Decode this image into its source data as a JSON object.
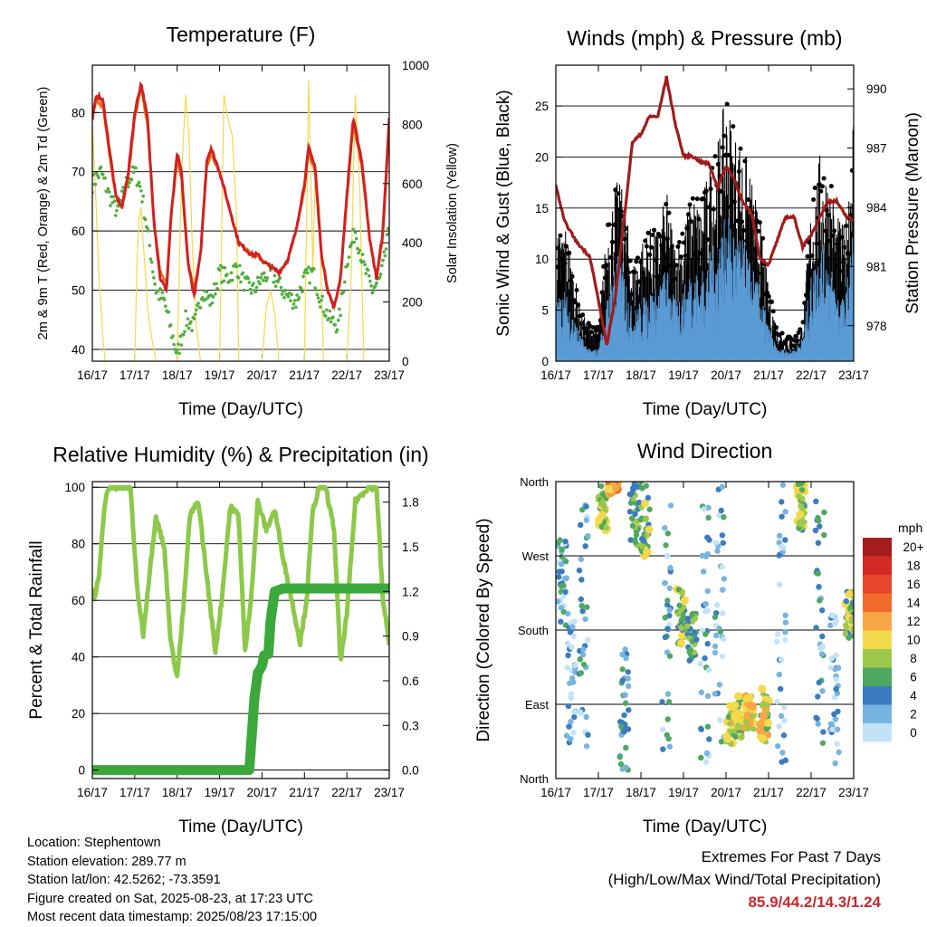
{
  "info": {
    "location": "Location: Stephentown",
    "elevation": "Station elevation: 289.77 m",
    "latlon": "Station lat/lon: 42.5262; -73.3591",
    "created": "Figure created on Sat, 2025-08-23, at 17:23 UTC",
    "recent": "Most recent data timestamp: 2025/08/23 17:15:00"
  },
  "extremes": {
    "title": "Extremes For Past 7 Days",
    "subtitle": "(High/Low/Max Wind/Total Precipitation)",
    "values": "85.9/44.2/14.3/1.24"
  },
  "colors": {
    "temp_9m": "#e8701a",
    "temp_2m": "#d22020",
    "dewpoint": "#4fae3c",
    "solar": "#f5d84a",
    "gust": "#000000",
    "wind": "#5b9bd5",
    "pressure": "#a01c1c",
    "rh": "#8dc84a",
    "precip": "#3ba83b"
  },
  "chart_data": [
    {
      "type": "line",
      "title": "Temperature (F)",
      "xlabel": "Time (Day/UTC)",
      "ylabel": "2m & 9m T (Red, Orange) & 2m Td (Green)",
      "y2label": "Solar Insolation (Yellow)",
      "ylim": [
        38,
        88
      ],
      "y2lim": [
        0,
        1000
      ],
      "yticks": [
        40,
        50,
        60,
        70,
        80
      ],
      "y2ticks": [
        0,
        200,
        400,
        600,
        800,
        1000
      ],
      "xticks": [
        "16/17",
        "17/17",
        "18/17",
        "19/17",
        "20/17",
        "21/17",
        "22/17",
        "23/17"
      ],
      "grid": true,
      "series": [
        {
          "name": "2m T",
          "axis": "left",
          "x": [
            0,
            0.1,
            0.25,
            0.4,
            0.55,
            0.7,
            0.85,
            1.0,
            1.15,
            1.3,
            1.45,
            1.6,
            1.75,
            1.85,
            2.0,
            2.1,
            2.25,
            2.4,
            2.55,
            2.7,
            2.8,
            3.0,
            3.15,
            3.3,
            3.45,
            3.6,
            3.75,
            3.9,
            4.0,
            4.2,
            4.4,
            4.6,
            4.8,
            5.0,
            5.1,
            5.25,
            5.4,
            5.55,
            5.7,
            5.85,
            6.0,
            6.15,
            6.35,
            6.55,
            6.7,
            6.85,
            7.0
          ],
          "y": [
            79,
            83,
            82,
            74,
            66,
            64,
            70,
            80,
            85,
            79,
            62,
            52,
            50,
            62,
            73,
            70,
            55,
            49,
            56,
            72,
            74,
            70,
            66,
            62,
            58,
            57,
            56,
            56,
            55,
            54,
            53,
            55,
            60,
            68,
            74,
            71,
            56,
            50,
            47,
            52,
            66,
            79,
            72,
            58,
            52,
            60,
            79
          ]
        },
        {
          "name": "9m T",
          "axis": "left",
          "x": [
            0,
            0.1,
            0.25,
            0.4,
            0.55,
            0.7,
            0.85,
            1.0,
            1.15,
            1.3,
            1.45,
            1.6,
            1.75,
            1.85,
            2.0,
            2.1,
            2.25,
            2.4,
            2.55,
            2.7,
            2.8,
            3.0,
            3.15,
            3.3,
            3.45,
            3.6,
            3.75,
            3.9,
            4.0,
            4.2,
            4.4,
            4.6,
            4.8,
            5.0,
            5.1,
            5.25,
            5.4,
            5.55,
            5.7,
            5.85,
            6.0,
            6.15,
            6.35,
            6.55,
            6.7,
            6.85,
            7.0
          ],
          "y": [
            79,
            82,
            81,
            73,
            66,
            64,
            69,
            79,
            84,
            78,
            62,
            53,
            51,
            62,
            72,
            69,
            55,
            50,
            56,
            71,
            73,
            70,
            66,
            62,
            58,
            57,
            56,
            56,
            55,
            54,
            53,
            55,
            60,
            67,
            73,
            70,
            56,
            50,
            47,
            52,
            65,
            78,
            71,
            58,
            52,
            59,
            78
          ]
        },
        {
          "name": "2m Td",
          "axis": "left",
          "x": [
            0,
            0.2,
            0.4,
            0.6,
            0.8,
            1.0,
            1.15,
            1.3,
            1.5,
            1.7,
            1.9,
            2.0,
            2.2,
            2.4,
            2.6,
            2.8,
            3.0,
            3.2,
            3.4,
            3.6,
            3.8,
            4.0,
            4.2,
            4.4,
            4.6,
            4.8,
            5.0,
            5.2,
            5.4,
            5.6,
            5.8,
            6.0,
            6.2,
            6.4,
            6.6,
            6.8,
            7.0
          ],
          "y": [
            68,
            70,
            66,
            63,
            68,
            70,
            67,
            60,
            50,
            48,
            42,
            39,
            45,
            44,
            50,
            48,
            53,
            52,
            54,
            51,
            50,
            52,
            53,
            51,
            49,
            48,
            52,
            53,
            48,
            45,
            44,
            55,
            60,
            54,
            50,
            52,
            60
          ]
        },
        {
          "name": "Solar",
          "axis": "right",
          "x": [
            0,
            0.08,
            0.15,
            0.25,
            0.3,
            1.0,
            1.05,
            1.1,
            1.15,
            1.2,
            1.25,
            1.3,
            1.4,
            1.5,
            2.0,
            2.1,
            2.2,
            2.28,
            2.35,
            2.45,
            2.55,
            3.0,
            3.1,
            3.2,
            3.3,
            3.4,
            3.45,
            4.0,
            4.1,
            4.2,
            4.3,
            4.4,
            5.0,
            5.1,
            5.2,
            5.25,
            5.35,
            5.45,
            6.0,
            6.1,
            6.2,
            6.3,
            6.4
          ],
          "y": [
            800,
            560,
            300,
            80,
            0,
            0,
            320,
            480,
            520,
            400,
            300,
            180,
            80,
            0,
            0,
            620,
            900,
            760,
            420,
            120,
            0,
            0,
            900,
            820,
            760,
            500,
            0,
            0,
            180,
            240,
            160,
            0,
            0,
            950,
            300,
            620,
            520,
            0,
            0,
            280,
            900,
            600,
            0
          ]
        }
      ]
    },
    {
      "type": "line",
      "title": "Winds (mph) & Pressure (mb)",
      "xlabel": "Time (Day/UTC)",
      "ylabel": "Sonic Wind & Gust (Blue, Black)",
      "y2label": "Station Pressure (Maroon)",
      "ylim": [
        0,
        29
      ],
      "y2lim": [
        976.2,
        991.2
      ],
      "yticks": [
        0,
        5,
        10,
        15,
        20,
        25
      ],
      "y2ticks": [
        978,
        981,
        984,
        987,
        990
      ],
      "xticks": [
        "16/17",
        "17/17",
        "18/17",
        "19/17",
        "20/17",
        "21/17",
        "22/17",
        "23/17"
      ],
      "grid": true,
      "series": [
        {
          "name": "Pressure",
          "axis": "right",
          "x": [
            0,
            0.2,
            0.5,
            0.8,
            1.0,
            1.2,
            1.4,
            1.6,
            1.8,
            2.0,
            2.2,
            2.4,
            2.6,
            2.8,
            3.0,
            3.2,
            3.4,
            3.6,
            3.8,
            4.0,
            4.2,
            4.4,
            4.6,
            4.8,
            5.0,
            5.2,
            5.4,
            5.6,
            5.8,
            6.0,
            6.2,
            6.4,
            6.6,
            6.8,
            7.0
          ],
          "y": [
            985.1,
            983.3,
            982.2,
            981.5,
            979.3,
            977.0,
            979.5,
            983.3,
            987.3,
            987.7,
            988.6,
            988.6,
            990.6,
            988.3,
            986.6,
            986.6,
            986.3,
            986.2,
            985.0,
            986.1,
            985.4,
            984.2,
            983.7,
            981.4,
            981.1,
            982.3,
            983.5,
            983.5,
            982.0,
            982.6,
            983.5,
            984.3,
            984.3,
            983.6,
            983.3
          ]
        },
        {
          "name": "Gust",
          "axis": "left",
          "x": [
            0,
            0.2,
            0.4,
            0.6,
            0.8,
            1.0,
            1.2,
            1.4,
            1.6,
            1.8,
            2.0,
            2.2,
            2.4,
            2.6,
            2.8,
            3.0,
            3.2,
            3.4,
            3.6,
            3.8,
            4.0,
            4.2,
            4.4,
            4.6,
            4.8,
            5.0,
            5.2,
            5.4,
            5.6,
            5.8,
            6.0,
            6.2,
            6.4,
            6.6,
            6.8,
            7.0
          ],
          "y": [
            10,
            12,
            8,
            4,
            3,
            3,
            11,
            15,
            14,
            8,
            10,
            11,
            11,
            14,
            10,
            11,
            14,
            13,
            16,
            18,
            22,
            19,
            18,
            15,
            12,
            6,
            3,
            2,
            2,
            3,
            13,
            17,
            16,
            12,
            11,
            22
          ]
        },
        {
          "name": "Wind",
          "axis": "left",
          "x": [
            0,
            0.2,
            0.4,
            0.6,
            0.8,
            1.0,
            1.2,
            1.4,
            1.6,
            1.8,
            2.0,
            2.2,
            2.4,
            2.6,
            2.8,
            3.0,
            3.2,
            3.4,
            3.6,
            3.8,
            4.0,
            4.2,
            4.4,
            4.6,
            4.8,
            5.0,
            5.2,
            5.4,
            5.6,
            5.8,
            6.0,
            6.2,
            6.4,
            6.6,
            6.8,
            7.0
          ],
          "y": [
            5,
            6,
            4,
            2,
            1,
            1,
            5,
            9,
            8,
            4,
            5,
            6,
            6,
            8,
            5,
            6,
            8,
            7,
            9,
            10,
            12,
            11,
            10,
            8,
            6,
            3,
            1,
            1,
            1,
            2,
            7,
            10,
            9,
            6,
            5,
            12
          ]
        }
      ]
    },
    {
      "type": "line",
      "title": "Relative Humidity (%) & Precipitation (in)",
      "xlabel": "Time (Day/UTC)",
      "ylabel": "Percent & Total Rainfall",
      "ylim": [
        -3,
        102
      ],
      "y2lim": [
        -0.057,
        1.938
      ],
      "yticks": [
        0,
        20,
        40,
        60,
        80,
        100
      ],
      "y2ticks": [
        "0.0",
        "0.3",
        "0.6",
        "0.9",
        "1.2",
        "1.5",
        "1.8"
      ],
      "xticks": [
        "16/17",
        "17/17",
        "18/17",
        "19/17",
        "20/17",
        "21/17",
        "22/17",
        "23/17"
      ],
      "grid": true,
      "series": [
        {
          "name": "RH",
          "axis": "left",
          "x": [
            0,
            0.05,
            0.15,
            0.3,
            0.4,
            0.6,
            0.9,
            1.05,
            1.2,
            1.35,
            1.5,
            1.7,
            1.85,
            2.0,
            2.15,
            2.3,
            2.5,
            2.7,
            2.9,
            3.05,
            3.25,
            3.45,
            3.6,
            3.75,
            3.9,
            4.1,
            4.3,
            4.5,
            4.7,
            4.9,
            5.05,
            5.2,
            5.35,
            5.5,
            5.7,
            5.85,
            6.0,
            6.2,
            6.5,
            6.7,
            6.85,
            7.0
          ],
          "y": [
            65,
            61,
            68,
            95,
            100,
            100,
            100,
            65,
            48,
            70,
            90,
            78,
            45,
            33,
            58,
            90,
            95,
            68,
            42,
            60,
            93,
            90,
            42,
            62,
            95,
            85,
            92,
            75,
            60,
            45,
            60,
            92,
            100,
            100,
            85,
            38,
            55,
            95,
            100,
            100,
            60,
            45
          ]
        },
        {
          "name": "Precipitation",
          "axis": "right",
          "x": [
            0,
            1,
            2,
            3,
            3.7,
            3.75,
            3.82,
            3.9,
            4.0,
            4.05,
            4.15,
            4.2,
            4.3,
            4.5,
            5,
            6,
            7
          ],
          "y": [
            0,
            0,
            0,
            0,
            0,
            0.2,
            0.48,
            0.65,
            0.7,
            0.77,
            0.78,
            1.0,
            1.2,
            1.22,
            1.22,
            1.22,
            1.22
          ]
        }
      ]
    },
    {
      "type": "scatter",
      "title": "Wind Direction",
      "xlabel": "Time (Day/UTC)",
      "ylabel": "Direction (Colored By Speed)",
      "ylim": [
        0,
        360
      ],
      "yticks": [
        "North",
        "East",
        "South",
        "West",
        "North"
      ],
      "xticks": [
        "16/17",
        "17/17",
        "18/17",
        "19/17",
        "20/17",
        "21/17",
        "22/17",
        "23/17"
      ],
      "grid": true,
      "legend": {
        "title": "mph",
        "labels": [
          "20+",
          "18",
          "16",
          "14",
          "12",
          "10",
          "8",
          "6",
          "4",
          "2",
          "0"
        ],
        "colors": [
          "#a51c1c",
          "#d42a26",
          "#e8462a",
          "#f26a2c",
          "#f8a746",
          "#f3d94c",
          "#9cc84c",
          "#4fa862",
          "#3a7cbf",
          "#78b4e0",
          "#c2e3f6"
        ]
      },
      "clusters": [
        {
          "x": 0.15,
          "dir_range": [
            180,
            300
          ],
          "speed": 3
        },
        {
          "x": 0.35,
          "dir_range": [
            40,
            200
          ],
          "speed": 2
        },
        {
          "x": 0.65,
          "dir_range": [
            20,
            350
          ],
          "speed": 3
        },
        {
          "x": 1.1,
          "dir_range": [
            300,
            360
          ],
          "speed": 8
        },
        {
          "x": 1.35,
          "dir_range": [
            345,
            360
          ],
          "speed": 12
        },
        {
          "x": 1.6,
          "dir_range": [
            10,
            160
          ],
          "speed": 4
        },
        {
          "x": 1.85,
          "dir_range": [
            280,
            360
          ],
          "speed": 6
        },
        {
          "x": 2.1,
          "dir_range": [
            270,
            360
          ],
          "speed": 7
        },
        {
          "x": 2.6,
          "dir_range": [
            20,
            340
          ],
          "speed": 3
        },
        {
          "x": 2.95,
          "dir_range": [
            160,
            230
          ],
          "speed": 7
        },
        {
          "x": 3.2,
          "dir_range": [
            140,
            200
          ],
          "speed": 6
        },
        {
          "x": 3.5,
          "dir_range": [
            20,
            330
          ],
          "speed": 3
        },
        {
          "x": 3.85,
          "dir_range": [
            40,
            360
          ],
          "speed": 3
        },
        {
          "x": 4.1,
          "dir_range": [
            40,
            90
          ],
          "speed": 8
        },
        {
          "x": 4.3,
          "dir_range": [
            50,
            100
          ],
          "speed": 9
        },
        {
          "x": 4.55,
          "dir_range": [
            60,
            100
          ],
          "speed": 10
        },
        {
          "x": 4.9,
          "dir_range": [
            40,
            110
          ],
          "speed": 9
        },
        {
          "x": 5.3,
          "dir_range": [
            10,
            360
          ],
          "speed": 2
        },
        {
          "x": 5.75,
          "dir_range": [
            300,
            360
          ],
          "speed": 7
        },
        {
          "x": 6.2,
          "dir_range": [
            20,
            360
          ],
          "speed": 3
        },
        {
          "x": 6.55,
          "dir_range": [
            10,
            200
          ],
          "speed": 2
        },
        {
          "x": 6.9,
          "dir_range": [
            170,
            230
          ],
          "speed": 7
        }
      ]
    }
  ]
}
